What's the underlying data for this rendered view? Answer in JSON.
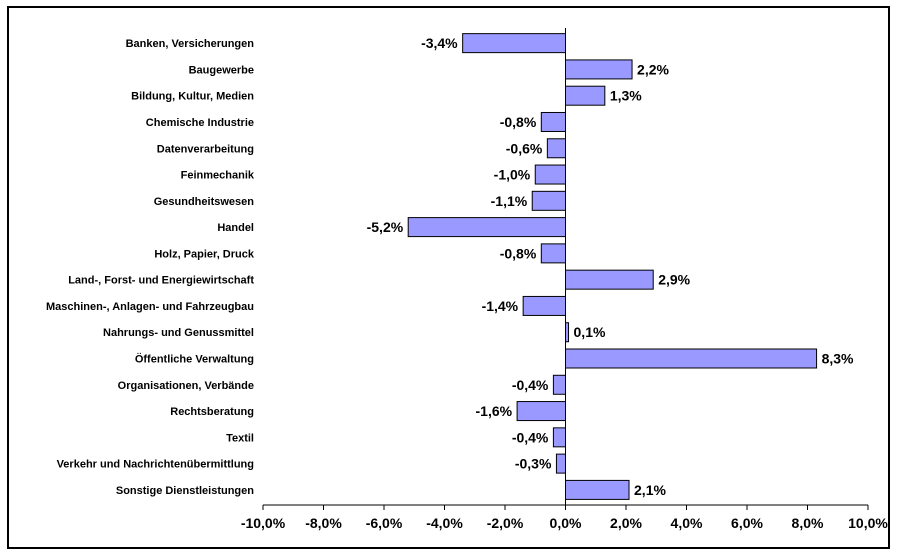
{
  "chart_data": {
    "type": "bar",
    "orientation": "horizontal",
    "title": "",
    "xlabel": "",
    "ylabel": "",
    "categories": [
      "Banken, Versicherungen",
      "Baugewerbe",
      "Bildung, Kultur, Medien",
      "Chemische Industrie",
      "Datenverarbeitung",
      "Feinmechanik",
      "Gesundheitswesen",
      "Handel",
      "Holz, Papier, Druck",
      "Land-, Forst- und Energiewirtschaft",
      "Maschinen-, Anlagen- und Fahrzeugbau",
      "Nahrungs- und Genussmittel",
      "Öffentliche Verwaltung",
      "Organisationen, Verbände",
      "Rechtsberatung",
      "Textil",
      "Verkehr und Nachrichtenübermittlung",
      "Sonstige Dienstleistungen"
    ],
    "values": [
      -3.4,
      2.2,
      1.3,
      -0.8,
      -0.6,
      -1.0,
      -1.1,
      -5.2,
      -0.8,
      2.9,
      -1.4,
      0.1,
      8.3,
      -0.4,
      -1.6,
      -0.4,
      -0.3,
      2.1
    ],
    "value_labels": [
      "-3,4%",
      "2,2%",
      "1,3%",
      "-0,8%",
      "-0,6%",
      "-1,0%",
      "-1,1%",
      "-5,2%",
      "-0,8%",
      "2,9%",
      "-1,4%",
      "0,1%",
      "8,3%",
      "-0,4%",
      "-1,6%",
      "-0,4%",
      "-0,3%",
      "2,1%"
    ],
    "xlim": [
      -10,
      10
    ],
    "x_ticks": [
      -10,
      -8,
      -6,
      -4,
      -2,
      0,
      2,
      4,
      6,
      8,
      10
    ],
    "x_tick_labels": [
      "-10,0%",
      "-8,0%",
      "-6,0%",
      "-4,0%",
      "-2,0%",
      "0,0%",
      "2,0%",
      "4,0%",
      "6,0%",
      "8,0%",
      "10,0%"
    ],
    "grid": false,
    "legend": "none",
    "bar_color": "#9999ff",
    "bar_edge_color": "#000000"
  }
}
